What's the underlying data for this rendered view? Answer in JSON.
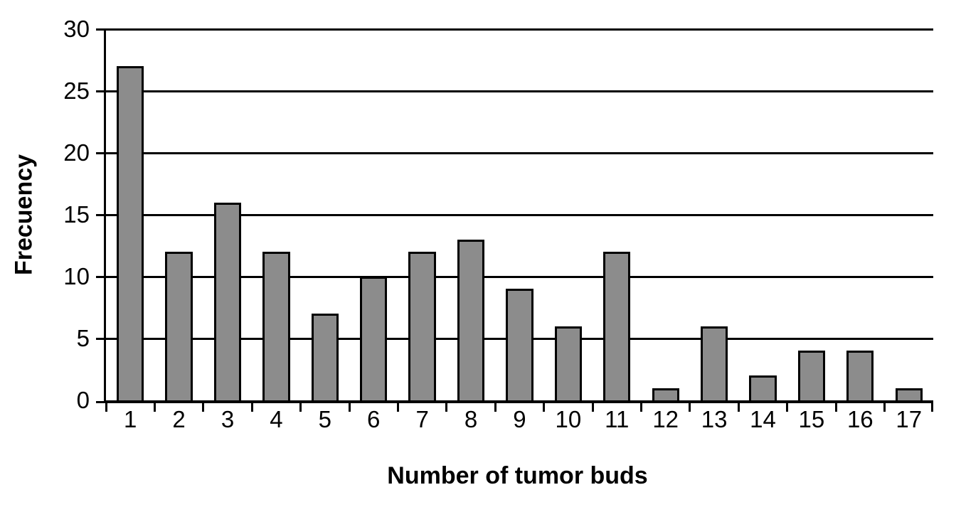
{
  "chart_data": {
    "type": "bar",
    "title": "",
    "categories": [
      "1",
      "2",
      "3",
      "4",
      "5",
      "6",
      "7",
      "8",
      "9",
      "10",
      "11",
      "12",
      "13",
      "14",
      "15",
      "16",
      "17"
    ],
    "values": [
      27,
      12,
      16,
      12,
      7,
      10,
      12,
      13,
      9,
      6,
      12,
      1,
      6,
      2,
      4,
      4,
      1
    ],
    "xlabel": "Number of tumor buds",
    "ylabel": "Frecuency",
    "ylim": [
      0,
      30
    ],
    "yticks": [
      0,
      5,
      10,
      15,
      20,
      25,
      30
    ],
    "grid": "horizontal-only",
    "legend": "none",
    "bar_color": "#8c8c8c",
    "bar_border_color": "#000000",
    "gridline_color": "#000000",
    "background_color": "#ffffff"
  }
}
